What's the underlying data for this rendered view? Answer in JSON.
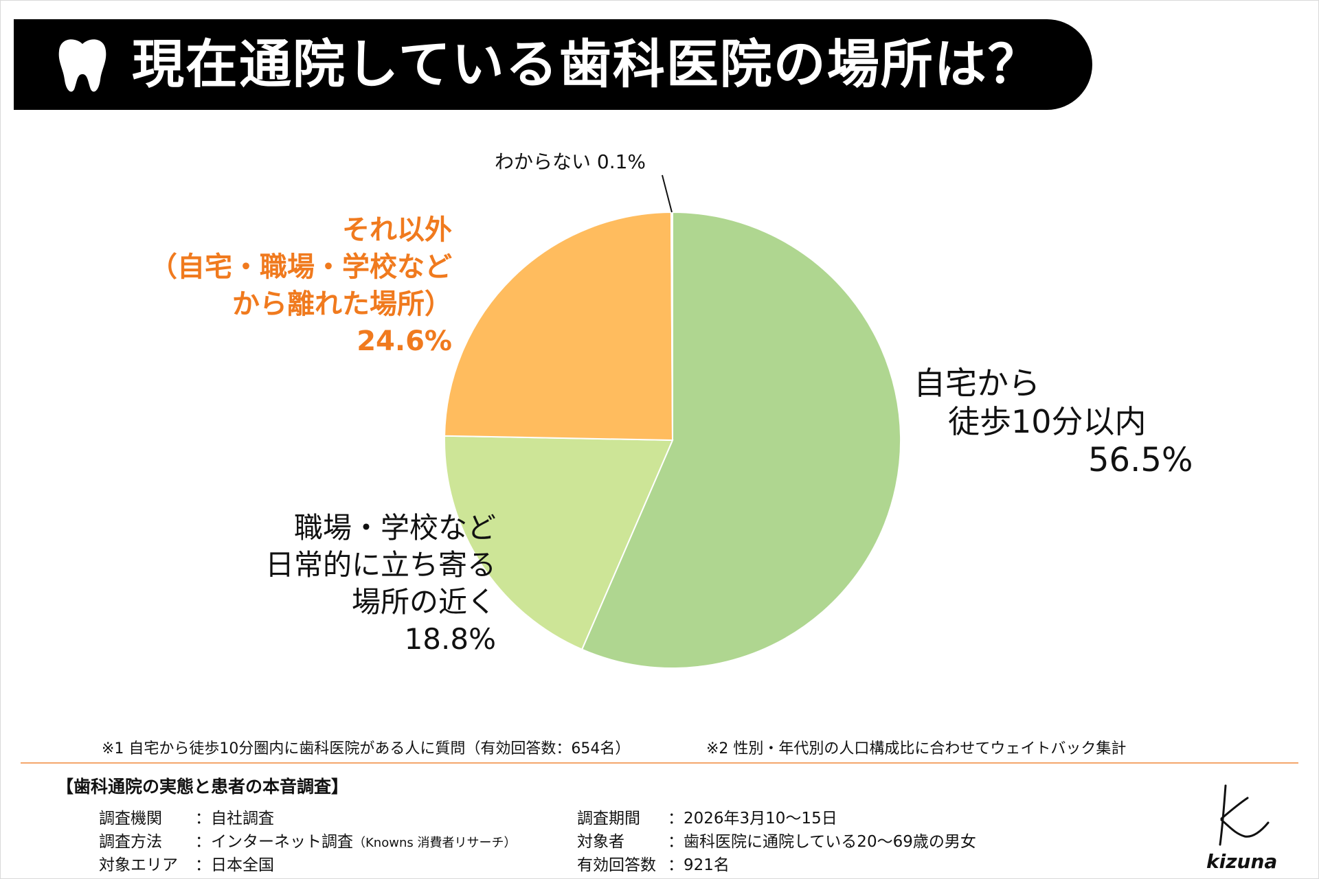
{
  "header": {
    "title": "現在通院している歯科医院の場所は？"
  },
  "chart_data": {
    "type": "pie",
    "title": "現在通院している歯科医院の場所は？",
    "slices": [
      {
        "label": "自宅から徒歩10分以内",
        "value": 56.5,
        "value_label": "56.5%",
        "color": "#afd690"
      },
      {
        "label": "職場・学校など日常的に立ち寄る場所の近く",
        "value": 18.8,
        "value_label": "18.8%",
        "color": "#cde597"
      },
      {
        "label": "それ以外（自宅・職場・学校などから離れた場所）",
        "value": 24.6,
        "value_label": "24.6%",
        "color": "#ffbc5e"
      },
      {
        "label": "わからない",
        "value": 0.1,
        "value_label": "0.1%",
        "color": "#c9c9c9"
      }
    ],
    "start": "12 o'clock, clockwise"
  },
  "labels": {
    "home": {
      "line1": "自宅から",
      "line2": "徒歩10分以内",
      "pct": "56.5%"
    },
    "work": {
      "line1": "職場・学校など",
      "line2": "日常的に立ち寄る",
      "line3": "場所の近く",
      "pct": "18.8%"
    },
    "other": {
      "line1": "それ以外",
      "line2": "（自宅・職場・学校など",
      "line3": "から離れた場所）",
      "pct": "24.6%"
    },
    "unknown": {
      "text": "わからない 0.1%"
    }
  },
  "footnotes": {
    "note1": "※1 自宅から徒歩10分圏内に歯科医院がある人に質問（有効回答数：654名）",
    "note2": "※2 性別・年代別の人口構成比に合わせてウェイトバック集計"
  },
  "survey": {
    "title": "【歯科通院の実態と患者の本音調査】",
    "left": [
      {
        "key": "調査機関",
        "value": "：自社調査"
      },
      {
        "key": "調査方法",
        "value": "：インターネット調査",
        "note": "（Knowns 消費者リサーチ）"
      },
      {
        "key": "対象エリア",
        "value": "：日本全国"
      }
    ],
    "right": [
      {
        "key": "調査期間",
        "value": "：2026年3月10〜15日"
      },
      {
        "key": "対象者",
        "value": "：歯科医院に通院している20〜69歳の男女"
      },
      {
        "key": "有効回答数",
        "value": "：921名"
      }
    ]
  },
  "logo": {
    "text": "kizuna"
  },
  "colors": {
    "accent": "#f07a1e",
    "divider": "#f4a66b",
    "header_bg": "#000000"
  }
}
